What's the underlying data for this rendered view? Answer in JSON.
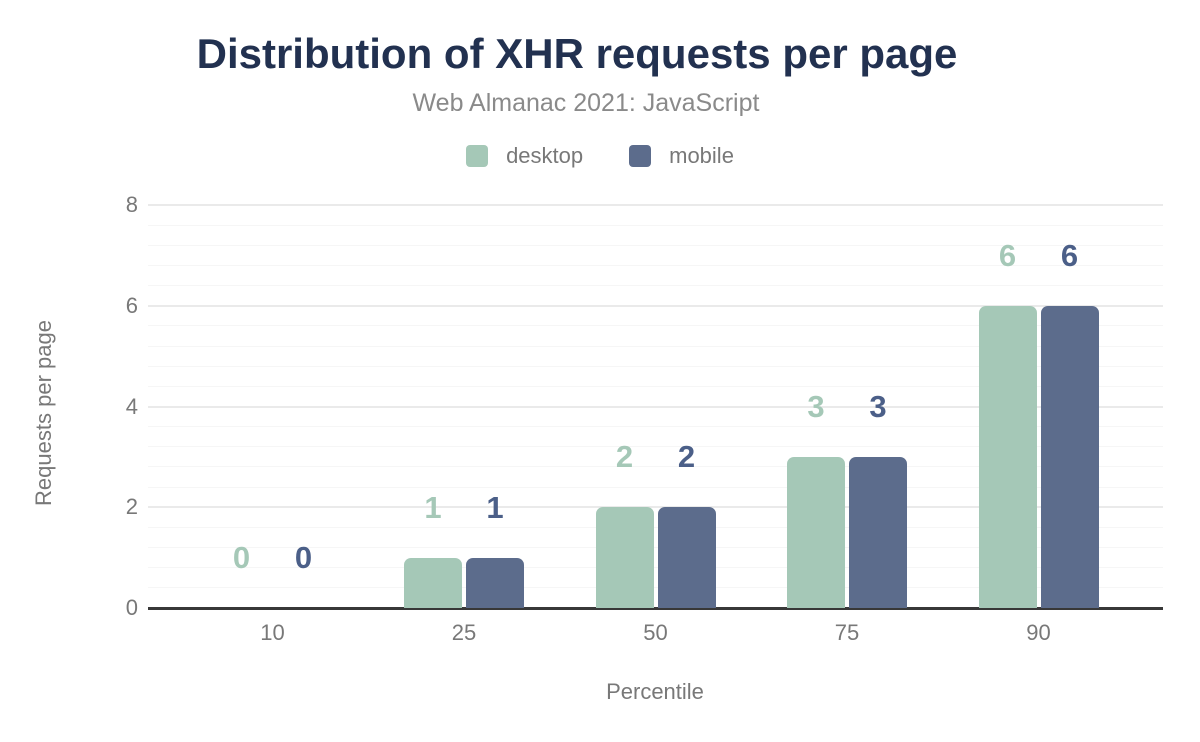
{
  "header": {
    "title": "Distribution of XHR requests per page",
    "subtitle": "Web Almanac 2021: JavaScript"
  },
  "legend": [
    {
      "name": "desktop",
      "label": "desktop",
      "color": "#a5c8b7"
    },
    {
      "name": "mobile",
      "label": "mobile",
      "color": "#5c6c8c"
    }
  ],
  "colors": {
    "title": "#223150",
    "subtitle": "#8a8a8a",
    "axis_text": "#787878",
    "baseline": "#383838",
    "grid_major": "#eaeaea",
    "grid_minor": "#f6f6f6",
    "desktop_bar": "#a5c8b7",
    "mobile_bar": "#5c6c8c",
    "desktop_value_label": "#a5c8b7",
    "mobile_value_label": "#4b5f88"
  },
  "chart_data": {
    "type": "bar",
    "title": "Distribution of XHR requests per page",
    "subtitle": "Web Almanac 2021: JavaScript",
    "categories": [
      "10",
      "25",
      "50",
      "75",
      "90"
    ],
    "series": [
      {
        "name": "desktop",
        "values": [
          0,
          1,
          2,
          3,
          6
        ]
      },
      {
        "name": "mobile",
        "values": [
          0,
          1,
          2,
          3,
          6
        ]
      }
    ],
    "xlabel": "Percentile",
    "ylabel": "Requests per page",
    "ylim": [
      0,
      8
    ],
    "yticks": [
      0,
      2,
      4,
      6,
      8
    ],
    "minor_gridlines_per_major": 4,
    "grid": true,
    "legend_position": "top",
    "data_labels": true
  }
}
